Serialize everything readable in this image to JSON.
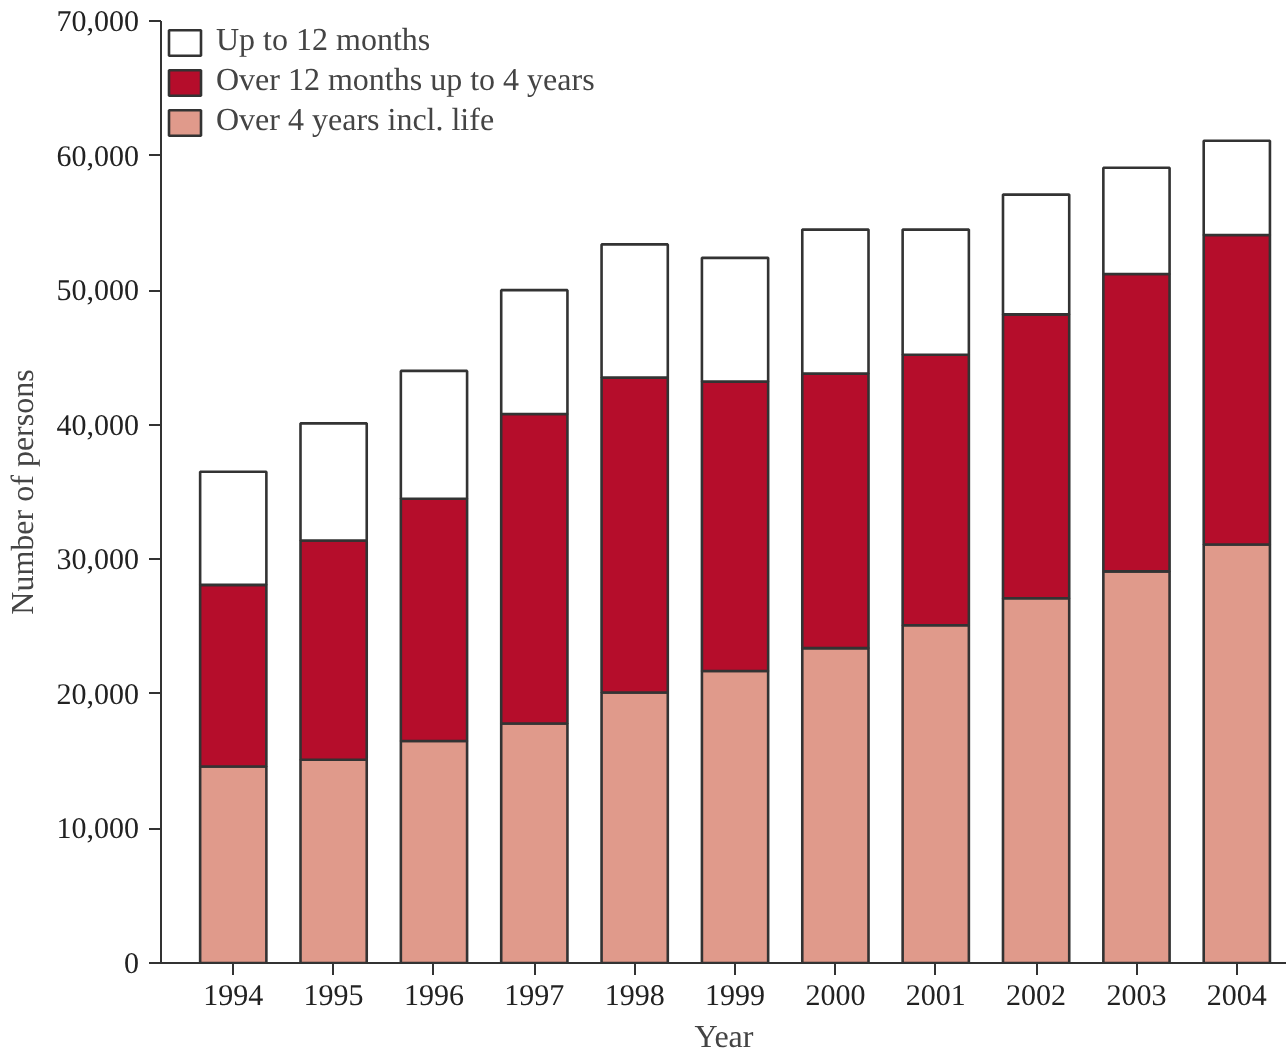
{
  "chart_data": {
    "type": "bar",
    "stacked": true,
    "xlabel": "Year",
    "ylabel": "Number of persons",
    "categories": [
      "1994",
      "1995",
      "1996",
      "1997",
      "1998",
      "1999",
      "2000",
      "2001",
      "2002",
      "2003",
      "2004"
    ],
    "series": [
      {
        "name": "Over 4 years incl. life",
        "color": "#e09a8b",
        "values": [
          14600,
          15100,
          16500,
          17800,
          20100,
          21700,
          23400,
          25100,
          27100,
          29100,
          31100
        ]
      },
      {
        "name": "Over 12 months up to 4 years",
        "color": "#b50d2b",
        "values": [
          13500,
          16300,
          18000,
          23000,
          23400,
          21500,
          20400,
          20100,
          21100,
          22100,
          23000
        ]
      },
      {
        "name": "Up to 12 months",
        "color": "#ffffff",
        "values": [
          8400,
          8700,
          9500,
          9200,
          9900,
          9200,
          10700,
          9300,
          8900,
          7900,
          7000
        ]
      }
    ],
    "ylim": [
      0,
      70000
    ],
    "yticks": [
      {
        "value": 0,
        "label": "0"
      },
      {
        "value": 10000,
        "label": "10,000"
      },
      {
        "value": 20000,
        "label": "20,000"
      },
      {
        "value": 30000,
        "label": "30,000"
      },
      {
        "value": 40000,
        "label": "40,000"
      },
      {
        "value": 50000,
        "label": "50,000"
      },
      {
        "value": 60000,
        "label": "60,000"
      },
      {
        "value": 70000,
        "label": "70,000"
      }
    ],
    "grid": false,
    "legend": "top left"
  }
}
